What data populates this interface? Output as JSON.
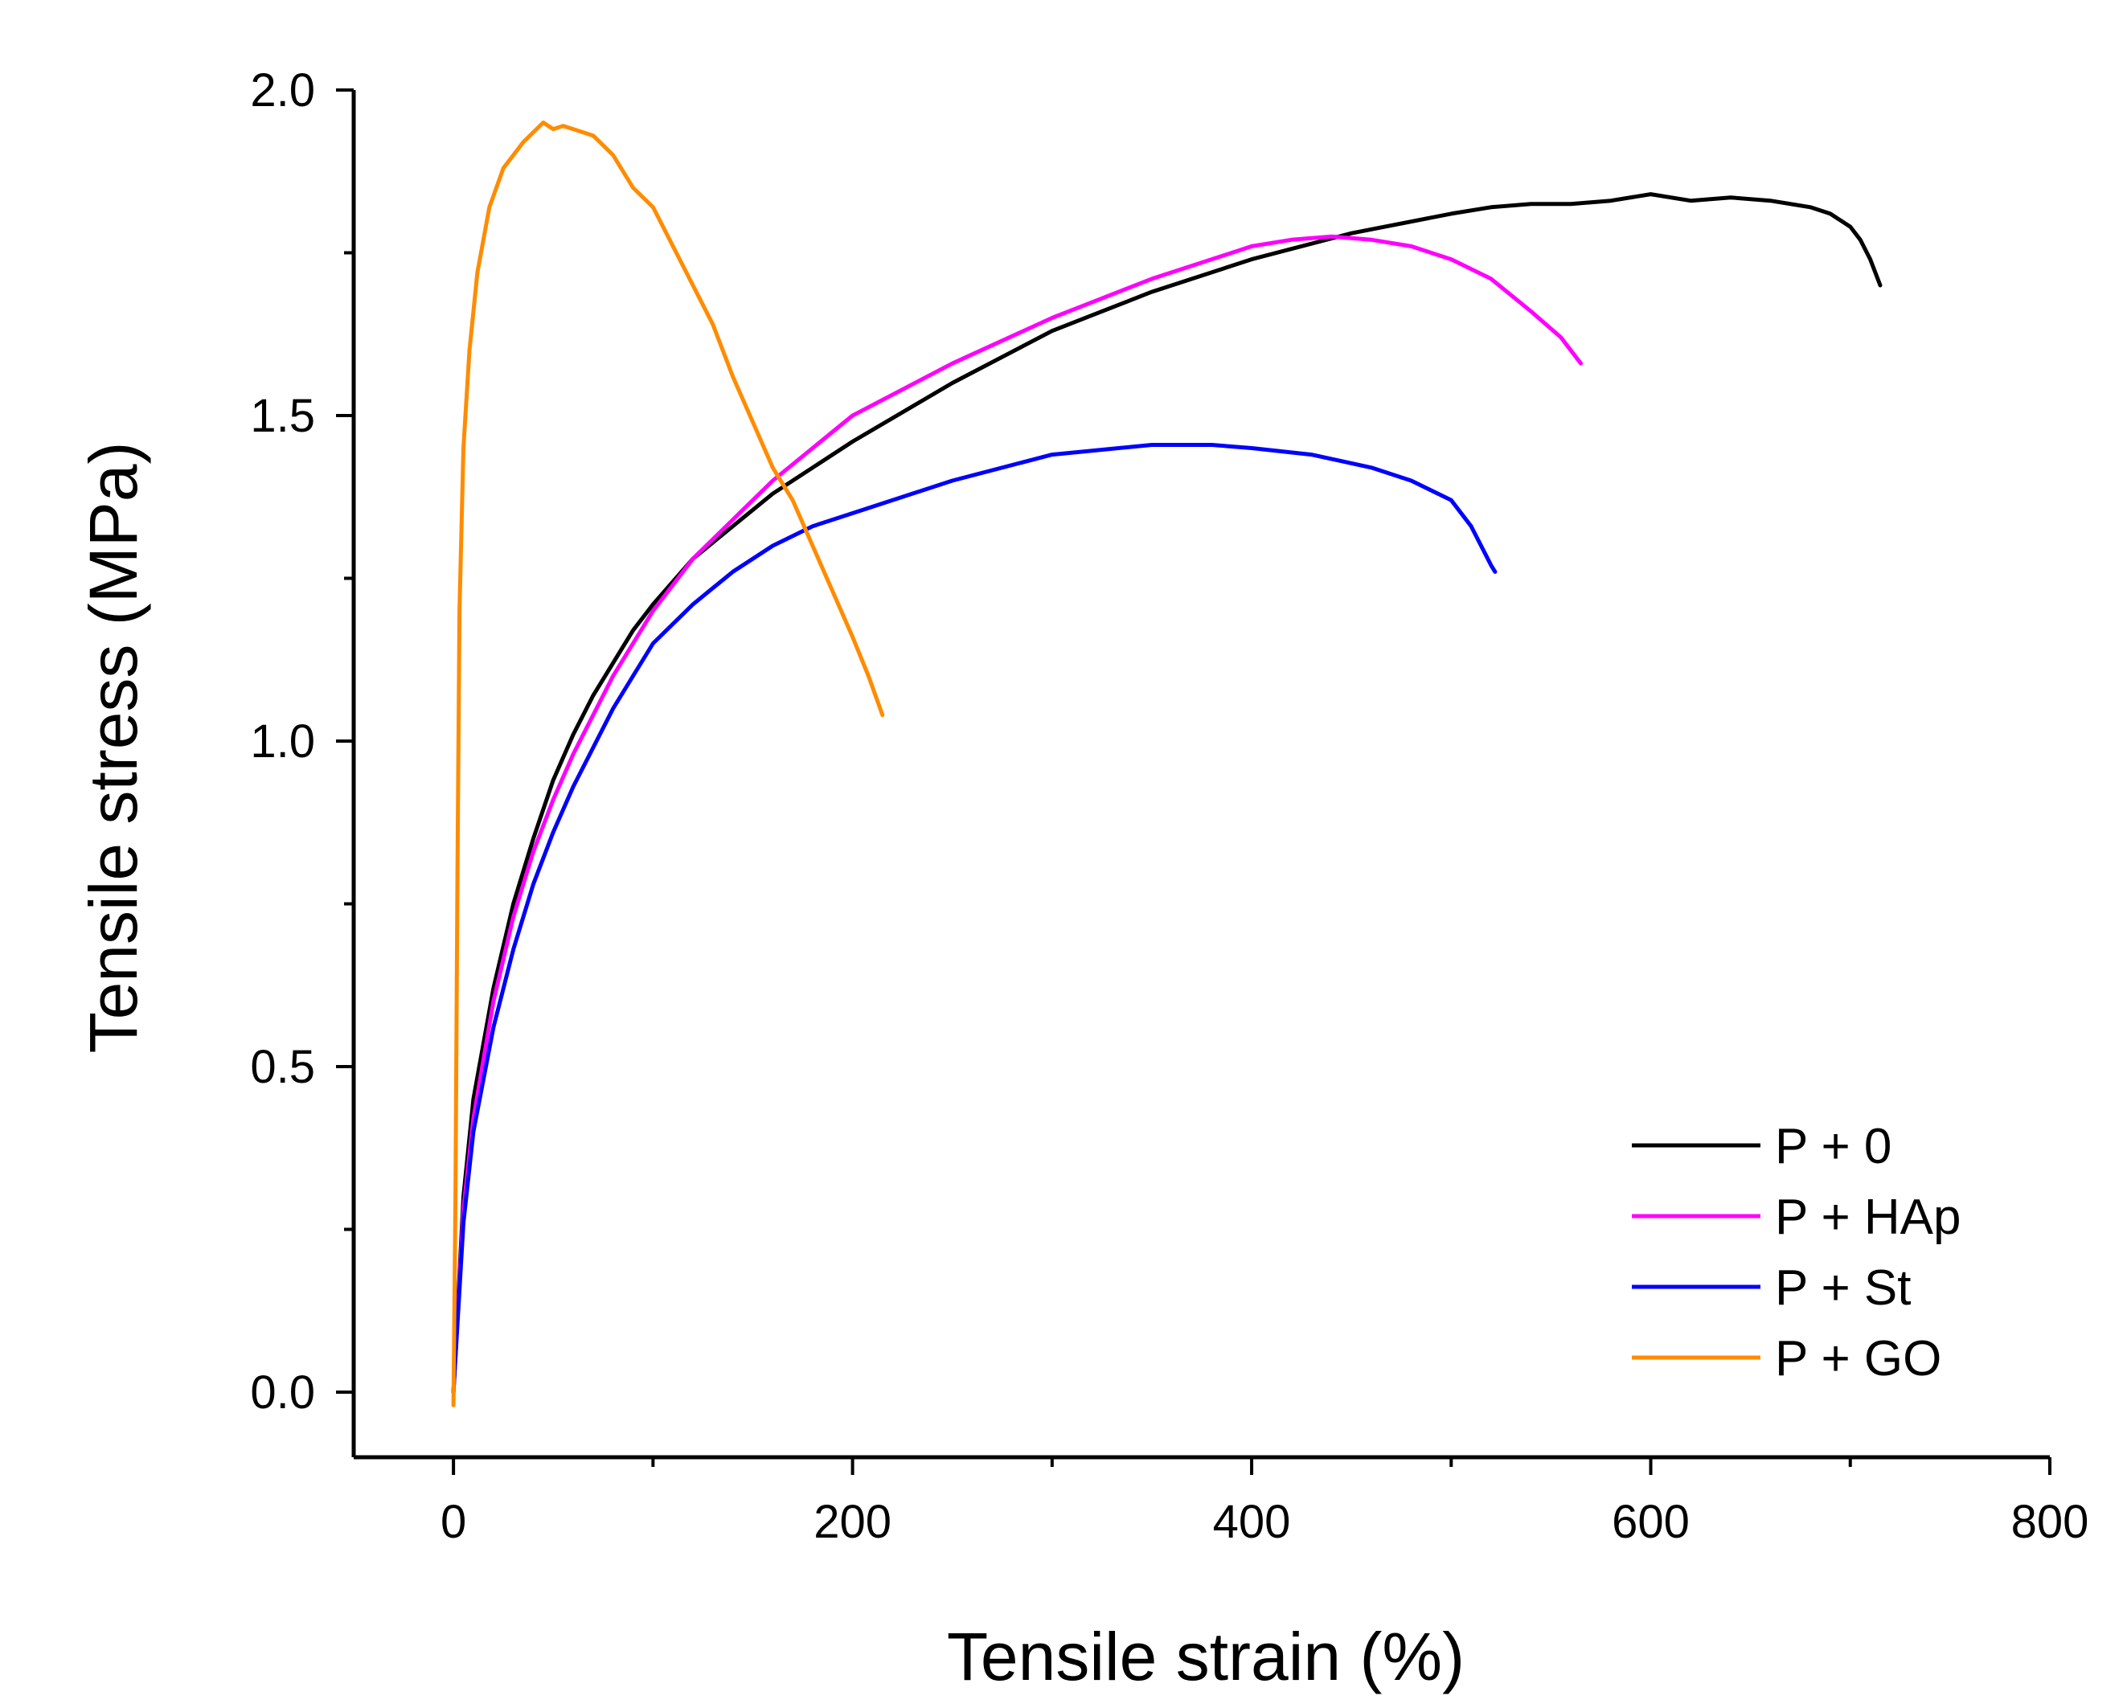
{
  "chart_data": {
    "type": "line",
    "title": "",
    "xlabel": "Tensile strain (%)",
    "ylabel": "Tensile stress (MPa)",
    "xlim": [
      -50,
      800
    ],
    "ylim": [
      -0.1,
      2.0
    ],
    "xticks": [
      0,
      200,
      400,
      600,
      800
    ],
    "xtick_labels": [
      "0",
      "200",
      "400",
      "600",
      "800"
    ],
    "xminor": [
      100,
      300,
      500,
      700
    ],
    "yticks": [
      0.0,
      0.5,
      1.0,
      1.5,
      2.0
    ],
    "ytick_labels": [
      "0.0",
      "0.5",
      "1.0",
      "1.5",
      "2.0"
    ],
    "yminor": [
      0.25,
      0.75,
      1.25,
      1.75
    ],
    "grid": false,
    "legend_position": "bottom-right",
    "series": [
      {
        "name": "P + 0",
        "color": "#000000",
        "x": [
          0,
          5,
          10,
          20,
          30,
          40,
          50,
          60,
          70,
          80,
          90,
          100,
          120,
          140,
          160,
          180,
          200,
          250,
          300,
          350,
          400,
          450,
          500,
          520,
          540,
          560,
          580,
          600,
          620,
          640,
          660,
          680,
          690,
          700,
          705,
          710,
          715
        ],
        "y": [
          0.0,
          0.3,
          0.45,
          0.62,
          0.75,
          0.85,
          0.94,
          1.01,
          1.07,
          1.12,
          1.17,
          1.21,
          1.28,
          1.33,
          1.38,
          1.42,
          1.46,
          1.55,
          1.63,
          1.69,
          1.74,
          1.78,
          1.81,
          1.82,
          1.825,
          1.825,
          1.83,
          1.84,
          1.83,
          1.835,
          1.83,
          1.82,
          1.81,
          1.79,
          1.77,
          1.74,
          1.7
        ]
      },
      {
        "name": "P + HAp",
        "color": "#ff00ff",
        "x": [
          0,
          5,
          10,
          20,
          30,
          40,
          50,
          60,
          70,
          80,
          90,
          100,
          120,
          140,
          160,
          180,
          200,
          250,
          300,
          350,
          400,
          420,
          440,
          460,
          480,
          500,
          520,
          540,
          555,
          565
        ],
        "y": [
          0.0,
          0.28,
          0.42,
          0.6,
          0.73,
          0.83,
          0.91,
          0.98,
          1.04,
          1.1,
          1.15,
          1.2,
          1.28,
          1.34,
          1.4,
          1.45,
          1.5,
          1.58,
          1.65,
          1.71,
          1.76,
          1.77,
          1.775,
          1.77,
          1.76,
          1.74,
          1.71,
          1.66,
          1.62,
          1.58
        ]
      },
      {
        "name": "P + St",
        "color": "#0000ff",
        "x": [
          0,
          5,
          10,
          20,
          30,
          40,
          50,
          60,
          70,
          80,
          90,
          100,
          120,
          140,
          160,
          180,
          200,
          250,
          300,
          350,
          380,
          400,
          430,
          460,
          480,
          500,
          510,
          515,
          520,
          522
        ],
        "y": [
          0.0,
          0.26,
          0.4,
          0.56,
          0.68,
          0.78,
          0.86,
          0.93,
          0.99,
          1.05,
          1.1,
          1.15,
          1.21,
          1.26,
          1.3,
          1.33,
          1.35,
          1.4,
          1.44,
          1.455,
          1.455,
          1.45,
          1.44,
          1.42,
          1.4,
          1.37,
          1.33,
          1.3,
          1.27,
          1.26
        ]
      },
      {
        "name": "P + GO",
        "color": "#ff8c00",
        "x": [
          0,
          1,
          2,
          3,
          5,
          8,
          12,
          18,
          25,
          35,
          45,
          50,
          55,
          60,
          70,
          80,
          90,
          100,
          110,
          120,
          130,
          140,
          150,
          160,
          170,
          180,
          190,
          200,
          208,
          215
        ],
        "y": [
          -0.02,
          0.3,
          0.8,
          1.2,
          1.45,
          1.6,
          1.72,
          1.82,
          1.88,
          1.92,
          1.95,
          1.94,
          1.945,
          1.94,
          1.93,
          1.9,
          1.85,
          1.82,
          1.76,
          1.7,
          1.64,
          1.56,
          1.49,
          1.42,
          1.37,
          1.3,
          1.23,
          1.16,
          1.1,
          1.04
        ]
      }
    ]
  }
}
